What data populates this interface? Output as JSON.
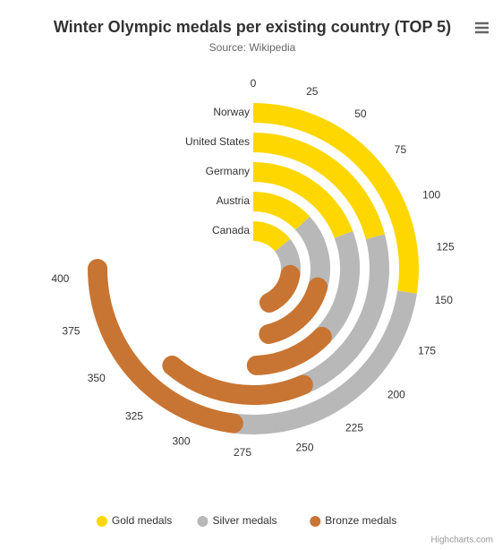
{
  "chart_data": {
    "type": "radial-bar",
    "title": "Winter Olympic medals per existing country (TOP 5)",
    "subtitle": "Source: Wikipedia",
    "categories": [
      "Norway",
      "United States",
      "Germany",
      "Austria",
      "Canada"
    ],
    "series": [
      {
        "name": "Gold medals",
        "color": "#ffd700",
        "values": [
          148,
          113,
          104,
          71,
          77
        ]
      },
      {
        "name": "Silver medals",
        "color": "#b8b8b8",
        "values": [
          133,
          122,
          98,
          88,
          72
        ]
      },
      {
        "name": "Bronze medals",
        "color": "#c87533",
        "values": [
          124,
          95,
          65,
          91,
          83
        ]
      }
    ],
    "ylim": [
      0,
      405
    ],
    "yticks": [
      0,
      25,
      50,
      75,
      100,
      125,
      150,
      175,
      200,
      225,
      250,
      275,
      300,
      325,
      350,
      375,
      400
    ],
    "stacked": true,
    "legend": "bottom",
    "credits": "Highcharts.com"
  }
}
